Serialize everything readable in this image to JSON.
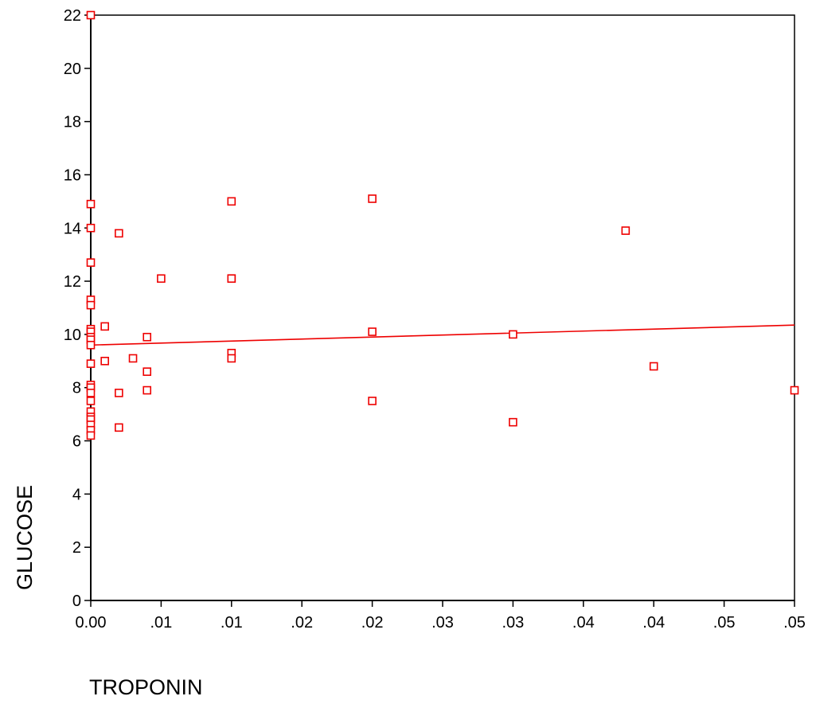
{
  "chart_data": {
    "type": "scatter",
    "title": "",
    "xlabel": "TROPONIN",
    "ylabel": "GLUCOSE",
    "xlim": [
      0,
      0.05
    ],
    "ylim": [
      0,
      22
    ],
    "grid": false,
    "legend": "none",
    "marker_color": "#ee0000",
    "line_color": "#ee0000",
    "x_ticks": [
      {
        "value": 0,
        "label": "0.00"
      },
      {
        "value": 0.005,
        "label": ".01"
      },
      {
        "value": 0.01,
        "label": ".01"
      },
      {
        "value": 0.015,
        "label": ".02"
      },
      {
        "value": 0.02,
        "label": ".02"
      },
      {
        "value": 0.025,
        "label": ".03"
      },
      {
        "value": 0.03,
        "label": ".03"
      },
      {
        "value": 0.035,
        "label": ".04"
      },
      {
        "value": 0.04,
        "label": ".04"
      },
      {
        "value": 0.045,
        "label": ".05"
      },
      {
        "value": 0.05,
        "label": ".05"
      }
    ],
    "y_ticks": [
      {
        "value": 0,
        "label": "0"
      },
      {
        "value": 2,
        "label": "2"
      },
      {
        "value": 4,
        "label": "4"
      },
      {
        "value": 6,
        "label": "6"
      },
      {
        "value": 8,
        "label": "8"
      },
      {
        "value": 10,
        "label": "10"
      },
      {
        "value": 12,
        "label": "12"
      },
      {
        "value": 14,
        "label": "14"
      },
      {
        "value": 16,
        "label": "16"
      },
      {
        "value": 18,
        "label": "18"
      },
      {
        "value": 20,
        "label": "20"
      },
      {
        "value": 22,
        "label": "22"
      }
    ],
    "points": [
      {
        "x": 0,
        "y": 22
      },
      {
        "x": 0,
        "y": 14.9
      },
      {
        "x": 0,
        "y": 14
      },
      {
        "x": 0,
        "y": 12.7
      },
      {
        "x": 0,
        "y": 11.3
      },
      {
        "x": 0,
        "y": 11.1
      },
      {
        "x": 0,
        "y": 10.2
      },
      {
        "x": 0,
        "y": 10.1
      },
      {
        "x": 0,
        "y": 9.9
      },
      {
        "x": 0,
        "y": 9.8
      },
      {
        "x": 0,
        "y": 9.6
      },
      {
        "x": 0,
        "y": 8.9
      },
      {
        "x": 0,
        "y": 8.1
      },
      {
        "x": 0,
        "y": 8
      },
      {
        "x": 0,
        "y": 7.8
      },
      {
        "x": 0,
        "y": 7.5
      },
      {
        "x": 0,
        "y": 7.1
      },
      {
        "x": 0,
        "y": 6.9
      },
      {
        "x": 0,
        "y": 6.8
      },
      {
        "x": 0,
        "y": 6.6
      },
      {
        "x": 0,
        "y": 6.4
      },
      {
        "x": 0,
        "y": 6.2
      },
      {
        "x": 0.001,
        "y": 10.3
      },
      {
        "x": 0.001,
        "y": 9
      },
      {
        "x": 0.002,
        "y": 13.8
      },
      {
        "x": 0.002,
        "y": 7.8
      },
      {
        "x": 0.002,
        "y": 6.5
      },
      {
        "x": 0.003,
        "y": 9.1
      },
      {
        "x": 0.004,
        "y": 9.9
      },
      {
        "x": 0.004,
        "y": 8.6
      },
      {
        "x": 0.004,
        "y": 7.9
      },
      {
        "x": 0.005,
        "y": 12.1
      },
      {
        "x": 0.01,
        "y": 15
      },
      {
        "x": 0.01,
        "y": 12.1
      },
      {
        "x": 0.01,
        "y": 12.1
      },
      {
        "x": 0.01,
        "y": 9.3
      },
      {
        "x": 0.01,
        "y": 9.1
      },
      {
        "x": 0.02,
        "y": 15.1
      },
      {
        "x": 0.02,
        "y": 10.1
      },
      {
        "x": 0.02,
        "y": 7.5
      },
      {
        "x": 0.03,
        "y": 10
      },
      {
        "x": 0.03,
        "y": 6.7
      },
      {
        "x": 0.038,
        "y": 13.9
      },
      {
        "x": 0.04,
        "y": 8.8
      },
      {
        "x": 0.05,
        "y": 7.9
      }
    ],
    "fit_line": {
      "x": [
        0,
        0.05
      ],
      "y": [
        9.6,
        10.35
      ]
    }
  }
}
